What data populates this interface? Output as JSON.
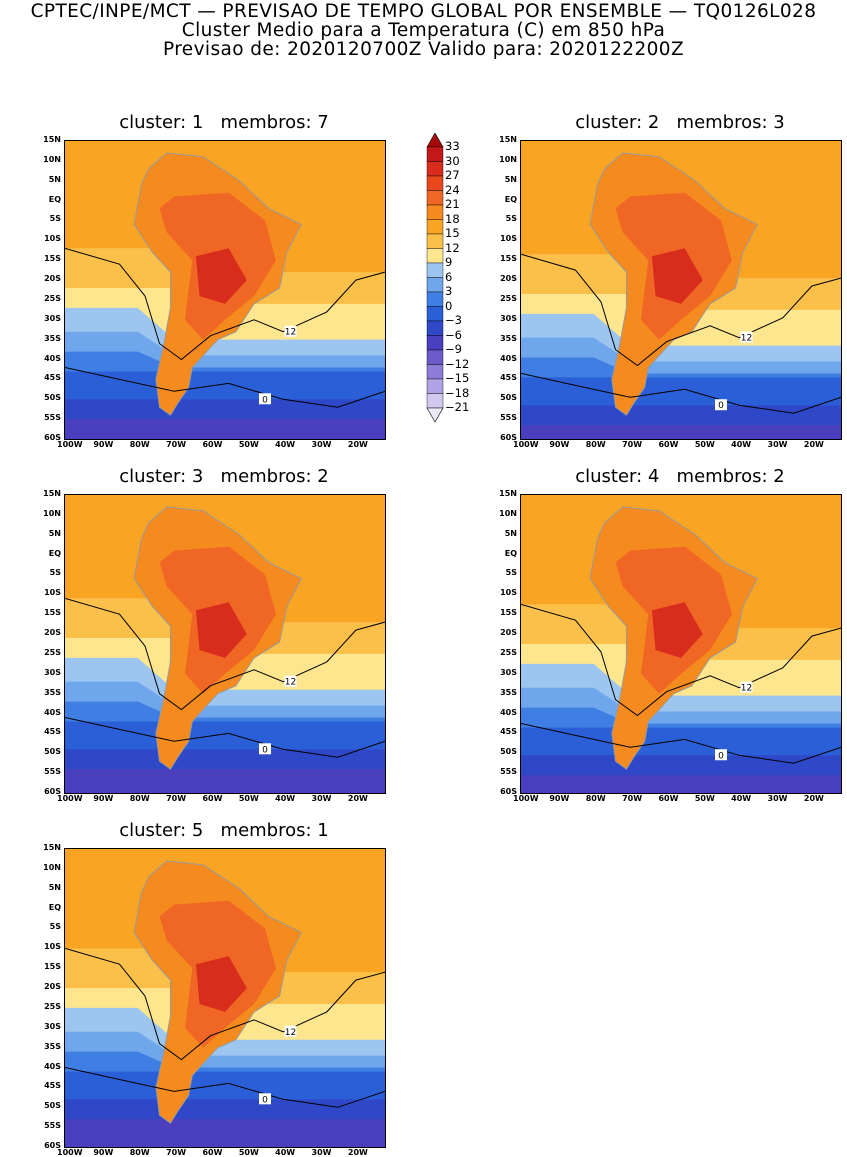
{
  "header": {
    "line1": "CPTEC/INPE/MCT — PREVISAO DE TEMPO GLOBAL POR ENSEMBLE — TQ0126L028",
    "line2": "Cluster Medio para a Temperatura (C) em 850 hPa",
    "line3": "Previsao de: 2020120700Z   Valido para: 2020122200Z"
  },
  "panels": [
    {
      "title": "cluster: 1   membros: 7"
    },
    {
      "title": "cluster: 2   membros: 3"
    },
    {
      "title": "cluster: 3   membros: 2"
    },
    {
      "title": "cluster: 4   membros: 2"
    },
    {
      "title": "cluster: 5   membros: 1"
    }
  ],
  "axes": {
    "lat_labels": [
      "15N",
      "10N",
      "5N",
      "EQ",
      "5S",
      "10S",
      "15S",
      "20S",
      "25S",
      "30S",
      "35S",
      "40S",
      "45S",
      "50S",
      "55S",
      "60S"
    ],
    "lon_labels": [
      "100W",
      "90W",
      "80W",
      "70W",
      "60W",
      "50W",
      "40W",
      "30W",
      "20W"
    ]
  },
  "contour_labels": {
    "twelve": "12",
    "zero": "0"
  },
  "colorbar": {
    "labels": [
      "33",
      "30",
      "27",
      "24",
      "21",
      "18",
      "15",
      "12",
      "9",
      "6",
      "3",
      "0",
      "−3",
      "−6",
      "−9",
      "−12",
      "−15",
      "−18",
      "−21"
    ],
    "colors": [
      "#a80808",
      "#c41818",
      "#d82c1c",
      "#e8481c",
      "#f06624",
      "#f58a1e",
      "#f9a523",
      "#fbc04a",
      "#fde68e",
      "#9cc6f0",
      "#6fa6ec",
      "#3f7fe4",
      "#2a5fd8",
      "#2f48c8",
      "#4a3fbe",
      "#6b5ac8",
      "#8e7cd8",
      "#b0a2e4",
      "#d2c8ef",
      "#ece8f8"
    ]
  },
  "chart_data": {
    "type": "heatmap",
    "variable": "Temperatura (C) em 850 hPa",
    "contour_levels": [
      12,
      0
    ],
    "clusters": [
      {
        "cluster": 1,
        "membros": 7
      },
      {
        "cluster": 2,
        "membros": 3
      },
      {
        "cluster": 3,
        "membros": 2
      },
      {
        "cluster": 4,
        "membros": 2
      },
      {
        "cluster": 5,
        "membros": 1
      }
    ],
    "legend_placement": "right of cluster 1 panel"
  }
}
